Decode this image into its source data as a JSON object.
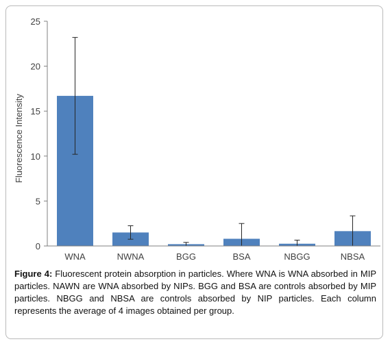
{
  "chart_data": {
    "type": "bar",
    "categories": [
      "WNA",
      "NWNA",
      "BGG",
      "BSA",
      "NBGG",
      "NBSA"
    ],
    "values": [
      16.7,
      1.5,
      0.2,
      0.8,
      0.25,
      1.65
    ],
    "error_bars": [
      6.5,
      0.75,
      0.2,
      1.7,
      0.4,
      1.7
    ],
    "ylabel": "Fluorescence Intensity",
    "xlabel": "",
    "ylim": [
      0,
      25
    ],
    "yticks": [
      0,
      5,
      10,
      15,
      20,
      25
    ],
    "bar_color": "#4f81bd",
    "grid": false,
    "legend": "none"
  },
  "caption": {
    "label": "Figure 4:",
    "text": "Fluorescent protein absorption in particles. Where WNA is WNA absorbed in MIP particles. NAWN are WNA absorbed by NIPs. BGG and BSA are controls absorbed by MIP particles. NBGG and NBSA are controls absorbed by NIP particles. Each column represents the average of 4 images obtained per group."
  }
}
